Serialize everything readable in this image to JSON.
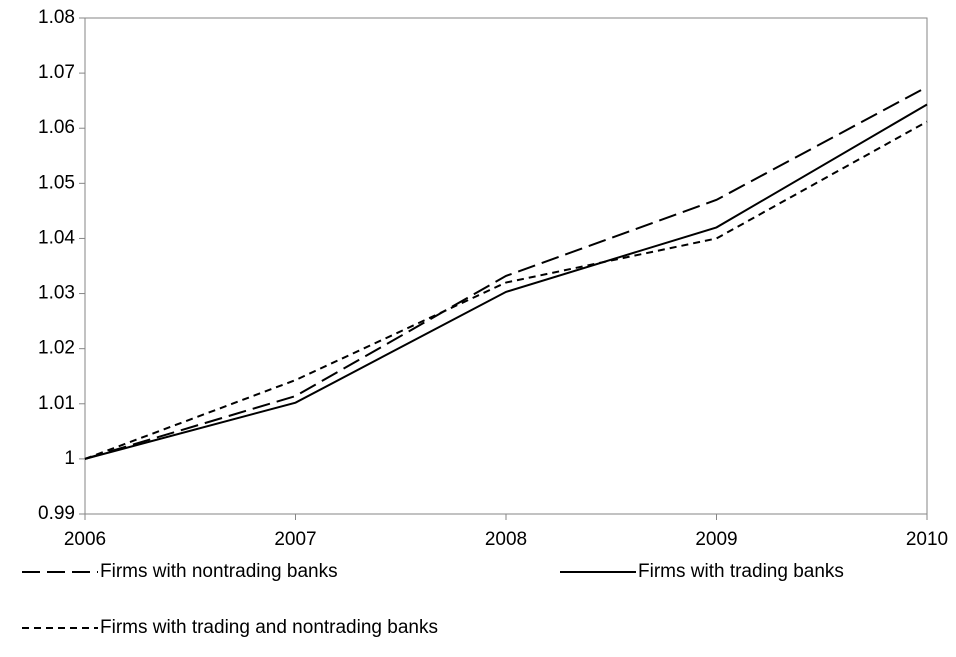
{
  "chart_data": {
    "type": "line",
    "x": [
      2006,
      2007,
      2008,
      2009,
      2010
    ],
    "xlim": [
      2006,
      2010
    ],
    "xticks": [
      2006,
      2007,
      2008,
      2009,
      2010
    ],
    "ylim": [
      0.99,
      1.08
    ],
    "yticks": [
      0.99,
      1,
      1.01,
      1.02,
      1.03,
      1.04,
      1.05,
      1.06,
      1.07,
      1.08
    ],
    "grid": false,
    "legend": "bottom",
    "series": [
      {
        "name": "Firms with nontrading banks",
        "color": "#000000",
        "dash": "long",
        "values": [
          1.0,
          1.0114,
          1.0332,
          1.047,
          1.0675
        ]
      },
      {
        "name": "Firms with trading banks",
        "color": "#000000",
        "dash": "solid",
        "values": [
          1.0,
          1.0102,
          1.0303,
          1.042,
          1.0643
        ]
      },
      {
        "name": "Firms with trading and nontrading banks",
        "color": "#000000",
        "dash": "short",
        "values": [
          1.0,
          1.0143,
          1.032,
          1.04,
          1.0612
        ]
      }
    ]
  }
}
